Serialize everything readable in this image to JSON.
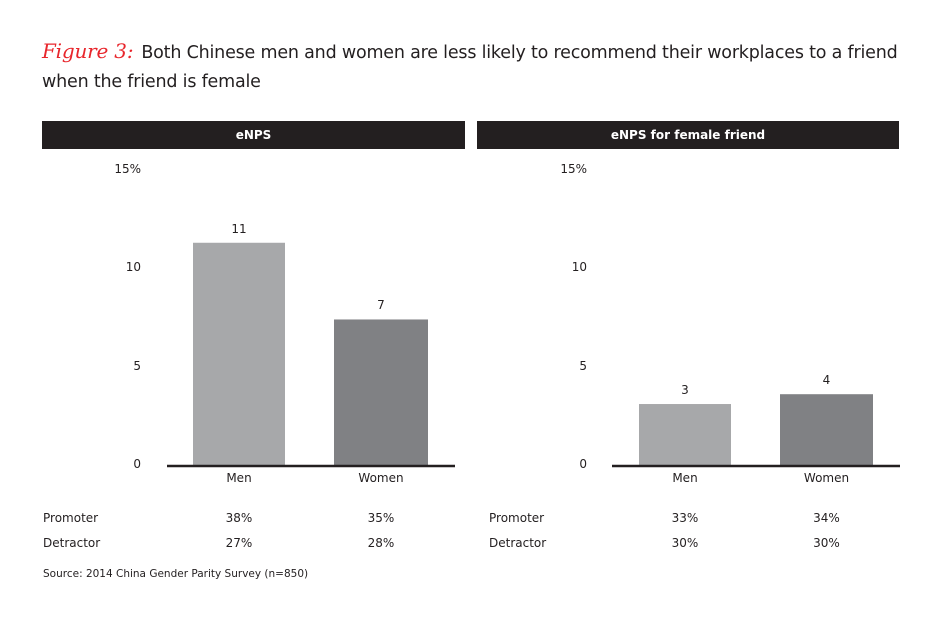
{
  "title": {
    "figure_label": "Figure 3:",
    "text": "Both Chinese men and women are less likely to recommend their workplaces to a friend when the friend is female"
  },
  "colors": {
    "men": "#a7a8aa",
    "women": "#808184",
    "header": "#231f20",
    "figure_label": "#e8262c"
  },
  "chart_data": [
    {
      "type": "bar",
      "title": "eNPS",
      "categories": [
        "Men",
        "Women"
      ],
      "values": [
        11.3,
        7.4
      ],
      "data_labels": [
        "11",
        "7"
      ],
      "ylim": [
        0,
        15
      ],
      "yticks": [
        "0",
        "5",
        "10",
        "15%"
      ],
      "grid": false,
      "table": {
        "rows": [
          {
            "label": "Promoter",
            "values": [
              "38%",
              "35%"
            ]
          },
          {
            "label": "Detractor",
            "values": [
              "27%",
              "28%"
            ]
          }
        ]
      }
    },
    {
      "type": "bar",
      "title": "eNPS for female friend",
      "categories": [
        "Men",
        "Women"
      ],
      "values": [
        3.1,
        3.6
      ],
      "data_labels": [
        "3",
        "4"
      ],
      "ylim": [
        0,
        15
      ],
      "yticks": [
        "0",
        "5",
        "10",
        "15%"
      ],
      "grid": false,
      "table": {
        "rows": [
          {
            "label": "Promoter",
            "values": [
              "33%",
              "34%"
            ]
          },
          {
            "label": "Detractor",
            "values": [
              "30%",
              "30%"
            ]
          }
        ]
      }
    }
  ],
  "source": "Source: 2014 China Gender Parity Survey (n=850)"
}
